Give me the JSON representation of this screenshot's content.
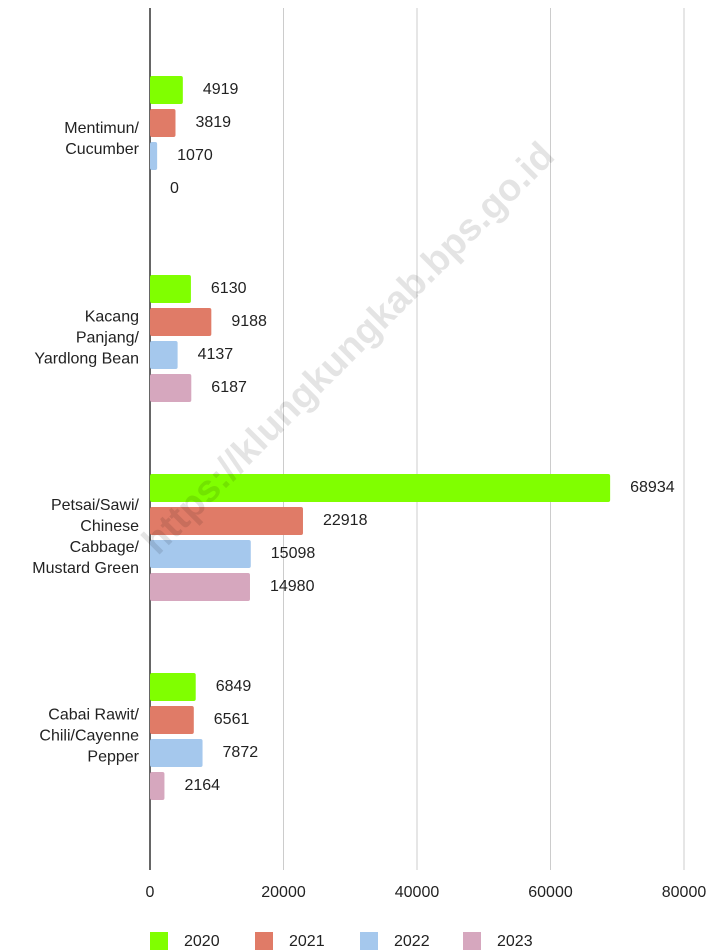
{
  "chart_data": {
    "type": "hbar",
    "watermark": "https://klungkungkab.bps.go.id",
    "categories": [
      [
        "Mentimun/",
        "Cucumber"
      ],
      [
        "Kacang",
        "Panjang/",
        "Yardlong Bean"
      ],
      [
        "Petsai/Sawi/",
        "Chinese",
        "Cabbage/",
        "Mustard Green"
      ],
      [
        "Cabai Rawit/",
        "Chili/Cayenne",
        "Pepper"
      ]
    ],
    "series": [
      {
        "name": "2020",
        "color": "#80ff00",
        "values": [
          4919,
          6130,
          68934,
          6849
        ]
      },
      {
        "name": "2021",
        "color": "#e07b67",
        "values": [
          3819,
          9188,
          22918,
          6561
        ]
      },
      {
        "name": "2022",
        "color": "#a5c8ed",
        "values": [
          1070,
          4137,
          15098,
          7872
        ]
      },
      {
        "name": "2023",
        "color": "#d6a7be",
        "values": [
          0,
          6187,
          14980,
          2164
        ]
      }
    ],
    "xlim": [
      0,
      80000
    ],
    "xticks": [
      0,
      20000,
      40000,
      60000,
      80000
    ],
    "grid": true,
    "legend": "bottom"
  }
}
